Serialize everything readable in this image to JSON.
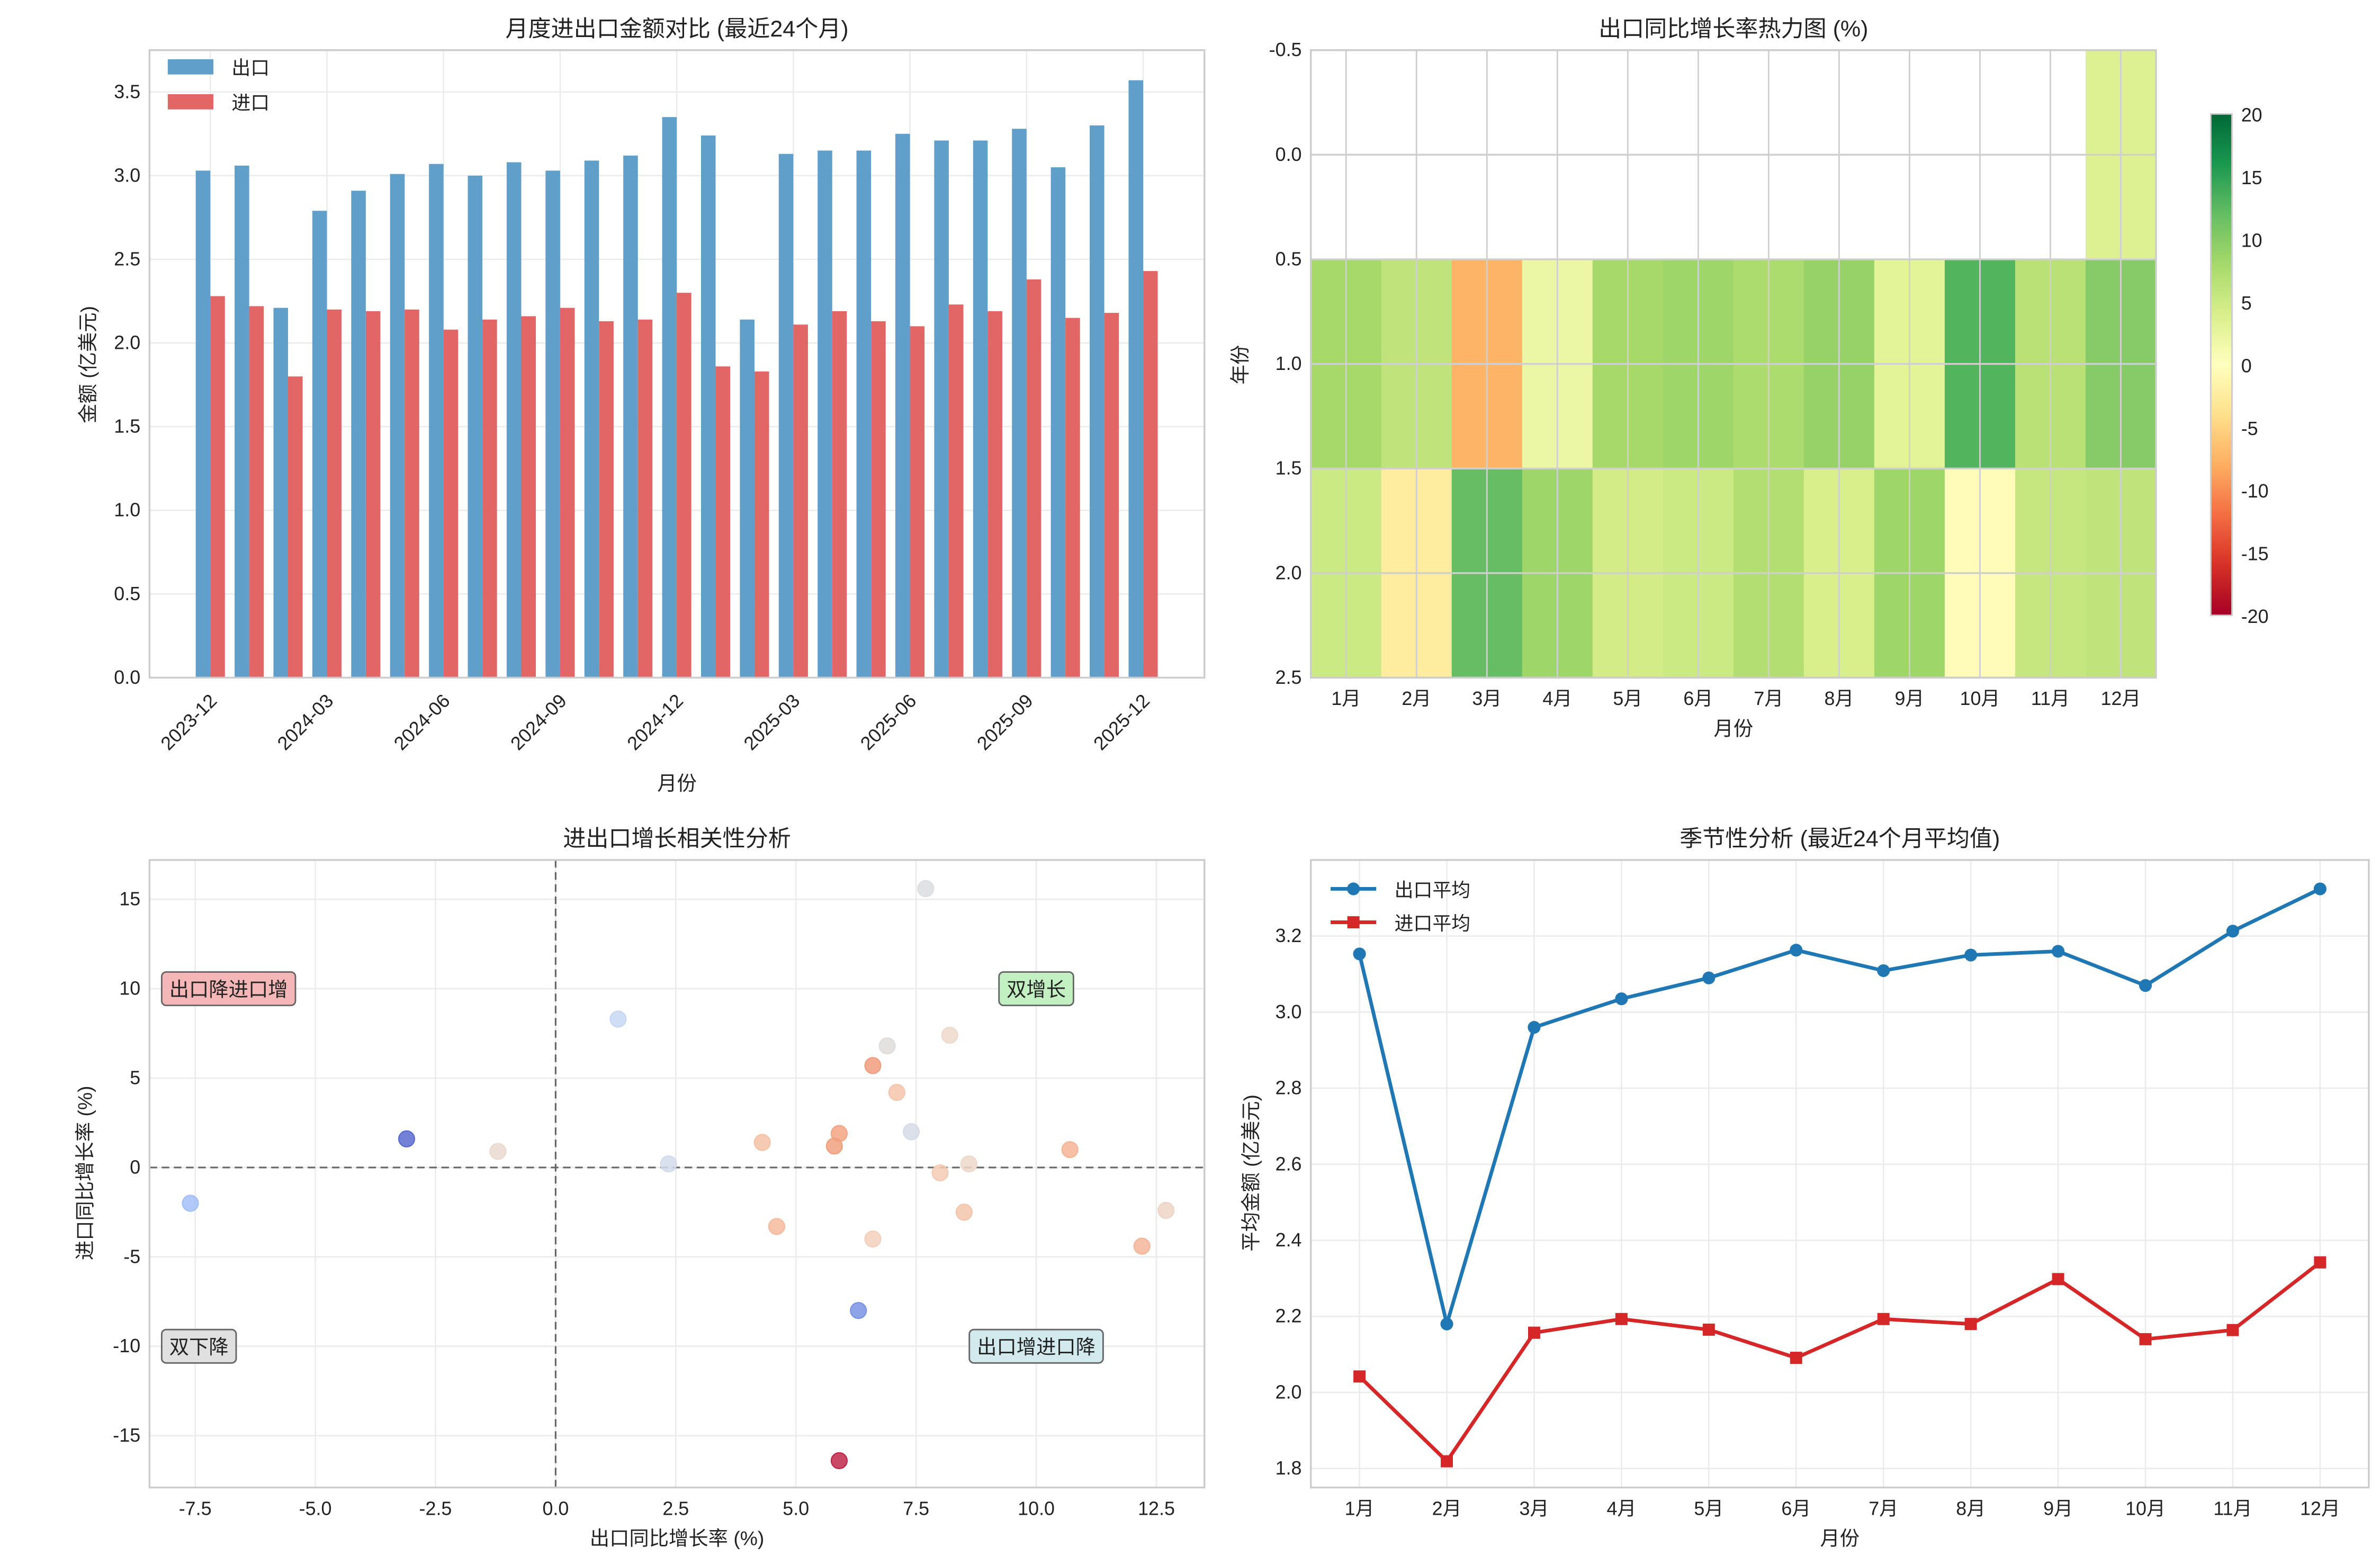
{
  "chart_data": [
    {
      "type": "bar",
      "title": "月度进出口金额对比 (最近24个月)",
      "xlabel": "月份",
      "ylabel": "金额 (亿美元)",
      "ylim": [
        0,
        3.75
      ],
      "yticks": [
        "0.0",
        "0.5",
        "1.0",
        "1.5",
        "2.0",
        "2.5",
        "3.0",
        "3.5"
      ],
      "xtick_labels": [
        "2023-12",
        "2024-03",
        "2024-06",
        "2024-09",
        "2024-12",
        "2025-03",
        "2025-06",
        "2025-09",
        "2025-12"
      ],
      "categories": [
        "2023-12",
        "2024-01",
        "2024-02",
        "2024-03",
        "2024-04",
        "2024-05",
        "2024-06",
        "2024-07",
        "2024-08",
        "2024-09",
        "2024-10",
        "2024-11",
        "2024-12",
        "2025-01",
        "2025-02",
        "2025-03",
        "2025-04",
        "2025-05",
        "2025-06",
        "2025-07",
        "2025-08",
        "2025-09",
        "2025-10",
        "2025-11",
        "2025-12"
      ],
      "series": [
        {
          "name": "出口",
          "color": "#619fcb",
          "values": [
            3.03,
            3.06,
            2.21,
            2.79,
            2.91,
            3.01,
            3.07,
            3.0,
            3.08,
            3.03,
            3.09,
            3.12,
            3.35,
            3.24,
            2.14,
            3.13,
            3.15,
            3.15,
            3.25,
            3.21,
            3.21,
            3.28,
            3.05,
            3.3,
            3.57
          ]
        },
        {
          "name": "进口",
          "color": "#e36667",
          "values": [
            2.28,
            2.22,
            1.8,
            2.2,
            2.19,
            2.2,
            2.08,
            2.14,
            2.16,
            2.21,
            2.13,
            2.14,
            2.3,
            1.86,
            1.83,
            2.11,
            2.19,
            2.13,
            2.1,
            2.23,
            2.19,
            2.38,
            2.15,
            2.18,
            2.43
          ]
        }
      ],
      "legend": "top-left",
      "grid": true
    },
    {
      "type": "heatmap",
      "title": "出口同比增长率热力图 (%)",
      "xlabel": "月份",
      "ylabel": "年份",
      "categories": [
        "1月",
        "2月",
        "3月",
        "4月",
        "5月",
        "6月",
        "7月",
        "8月",
        "9月",
        "10月",
        "11月",
        "12月"
      ],
      "yticks": [
        "-0.5",
        "0.0",
        "0.5",
        "1.0",
        "1.5",
        "2.0",
        "2.5"
      ],
      "values": [
        [
          null,
          null,
          null,
          null,
          null,
          null,
          null,
          null,
          null,
          null,
          null,
          3.5
        ],
        [
          8.0,
          6.0,
          -7.5,
          2.0,
          8.0,
          8.5,
          7.5,
          9.0,
          3.0,
          13.0,
          6.5,
          10.0
        ],
        [
          5.0,
          -2.5,
          12.0,
          8.5,
          4.5,
          5.0,
          7.0,
          4.0,
          8.5,
          -0.5,
          5.5,
          6.0
        ]
      ],
      "colormap": "RdYlGn",
      "vmin": -20,
      "vmax": 20,
      "colorbar_ticks": [
        "20",
        "15",
        "10",
        "5",
        "0",
        "-5",
        "-10",
        "-15",
        "-20"
      ]
    },
    {
      "type": "scatter",
      "title": "进出口增长相关性分析",
      "xlabel": "出口同比增长率 (%)",
      "ylabel": "进口同比增长率 (%)",
      "xlim": [
        -8.45,
        13.5
      ],
      "ylim": [
        -17.9,
        17.2
      ],
      "xticks": [
        "-7.5",
        "-5.0",
        "-2.5",
        "0.0",
        "2.5",
        "5.0",
        "7.5",
        "10.0",
        "12.5"
      ],
      "yticks": [
        "15",
        "10",
        "5",
        "0",
        "-5",
        "-10",
        "-15"
      ],
      "points": [
        {
          "x": 7.7,
          "y": 15.6,
          "color": "#dcdde2"
        },
        {
          "x": 1.3,
          "y": 8.3,
          "color": "#c7d7f3"
        },
        {
          "x": 8.2,
          "y": 7.4,
          "color": "#eed9cd"
        },
        {
          "x": 6.9,
          "y": 6.8,
          "color": "#dfdcdc"
        },
        {
          "x": 6.6,
          "y": 5.7,
          "color": "#f19e7f"
        },
        {
          "x": 7.1,
          "y": 4.2,
          "color": "#f4c5ab"
        },
        {
          "x": 7.4,
          "y": 2.0,
          "color": "#d5dbe8"
        },
        {
          "x": 5.9,
          "y": 1.9,
          "color": "#f3a583"
        },
        {
          "x": 5.8,
          "y": 1.2,
          "color": "#f0a17f"
        },
        {
          "x": 4.3,
          "y": 1.4,
          "color": "#f5c2a6"
        },
        {
          "x": -3.1,
          "y": 1.6,
          "color": "#5b6cd0"
        },
        {
          "x": -1.2,
          "y": 0.9,
          "color": "#ead9d0"
        },
        {
          "x": 2.35,
          "y": 0.2,
          "color": "#d2dcec"
        },
        {
          "x": 10.7,
          "y": 1.0,
          "color": "#f4b496"
        },
        {
          "x": 8.6,
          "y": 0.2,
          "color": "#efd8cb"
        },
        {
          "x": 8.0,
          "y": -0.3,
          "color": "#f3cbb4"
        },
        {
          "x": -7.6,
          "y": -2.0,
          "color": "#a2bff8"
        },
        {
          "x": 8.5,
          "y": -2.5,
          "color": "#f3c5ac"
        },
        {
          "x": 12.7,
          "y": -2.4,
          "color": "#eed4c6"
        },
        {
          "x": 4.6,
          "y": -3.3,
          "color": "#f5bb9e"
        },
        {
          "x": 6.6,
          "y": -4.0,
          "color": "#f4d0bb"
        },
        {
          "x": 12.2,
          "y": -4.4,
          "color": "#f3b69a"
        },
        {
          "x": 6.3,
          "y": -8.0,
          "color": "#7b93e3"
        },
        {
          "x": 5.9,
          "y": -16.4,
          "color": "#c0284a"
        }
      ],
      "quadrant_labels": [
        {
          "text": "出口降进口增",
          "x": -10,
          "y": 10,
          "color": "#f4b6b6"
        },
        {
          "text": "双增长",
          "x": 10,
          "y": 10,
          "color": "#c2f0c2"
        },
        {
          "text": "双下降",
          "x": -10,
          "y": -10,
          "color": "#e0e0e0"
        },
        {
          "text": "出口增进口降",
          "x": 10,
          "y": -10,
          "color": "#d2e9ee"
        }
      ],
      "reference_lines": {
        "x": 0,
        "y": 0
      },
      "grid": true
    },
    {
      "type": "line",
      "title": "季节性分析 (最近24个月平均值)",
      "xlabel": "月份",
      "ylabel": "平均金额 (亿美元)",
      "ylim": [
        1.75,
        3.4
      ],
      "yticks": [
        "1.8",
        "2.0",
        "2.2",
        "2.4",
        "2.6",
        "2.8",
        "3.0",
        "3.2"
      ],
      "categories": [
        "1月",
        "2月",
        "3月",
        "4月",
        "5月",
        "6月",
        "7月",
        "8月",
        "9月",
        "10月",
        "11月",
        "12月"
      ],
      "series": [
        {
          "name": "出口平均",
          "color": "#1f77b4",
          "marker": "circle",
          "values": [
            3.153,
            2.18,
            2.96,
            3.035,
            3.09,
            3.163,
            3.109,
            3.15,
            3.16,
            3.07,
            3.213,
            3.324
          ]
        },
        {
          "name": "进口平均",
          "color": "#d62728",
          "marker": "square",
          "values": [
            2.042,
            1.819,
            2.157,
            2.193,
            2.165,
            2.091,
            2.193,
            2.18,
            2.298,
            2.14,
            2.164,
            2.342
          ]
        }
      ],
      "legend": "top-left",
      "grid": true
    }
  ]
}
